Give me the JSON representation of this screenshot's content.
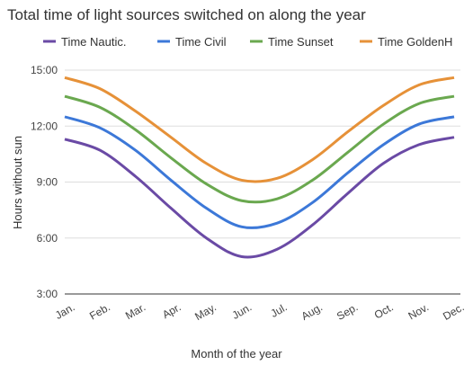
{
  "chart_data": {
    "type": "line",
    "title": "Total time of light sources switched on along the year",
    "xlabel": "Month of the year",
    "ylabel": "Hours without sun",
    "categories": [
      "Jan.",
      "Feb.",
      "Mar.",
      "Apr.",
      "May.",
      "Jun.",
      "Jul.",
      "Aug.",
      "Sep.",
      "Oct.",
      "Nov.",
      "Dec."
    ],
    "series": [
      {
        "name": "Time Nautic.",
        "color": "#6a4aa5",
        "values": [
          11.3,
          10.7,
          9.3,
          7.6,
          6.0,
          5.0,
          5.4,
          6.7,
          8.4,
          10.0,
          11.0,
          11.4
        ]
      },
      {
        "name": "Time Civil",
        "color": "#3c78d8",
        "values": [
          12.5,
          11.9,
          10.7,
          9.1,
          7.6,
          6.6,
          6.8,
          7.9,
          9.5,
          11.0,
          12.1,
          12.5
        ]
      },
      {
        "name": "Time Sunset",
        "color": "#6aa84f",
        "values": [
          13.6,
          13.0,
          11.8,
          10.3,
          8.9,
          8.0,
          8.1,
          9.1,
          10.6,
          12.1,
          13.2,
          13.6
        ]
      },
      {
        "name": "Time GoldenH",
        "color": "#e69138",
        "values": [
          14.6,
          14.0,
          12.8,
          11.4,
          10.0,
          9.1,
          9.2,
          10.2,
          11.7,
          13.1,
          14.2,
          14.6
        ]
      }
    ],
    "ylim": [
      3,
      15
    ],
    "yticks": [
      {
        "value": 3,
        "label": "3:00"
      },
      {
        "value": 6,
        "label": "6:00"
      },
      {
        "value": 9,
        "label": "9:00"
      },
      {
        "value": 12,
        "label": "12:00"
      },
      {
        "value": 15,
        "label": "15:00"
      }
    ],
    "grid": true,
    "legend": "top"
  }
}
